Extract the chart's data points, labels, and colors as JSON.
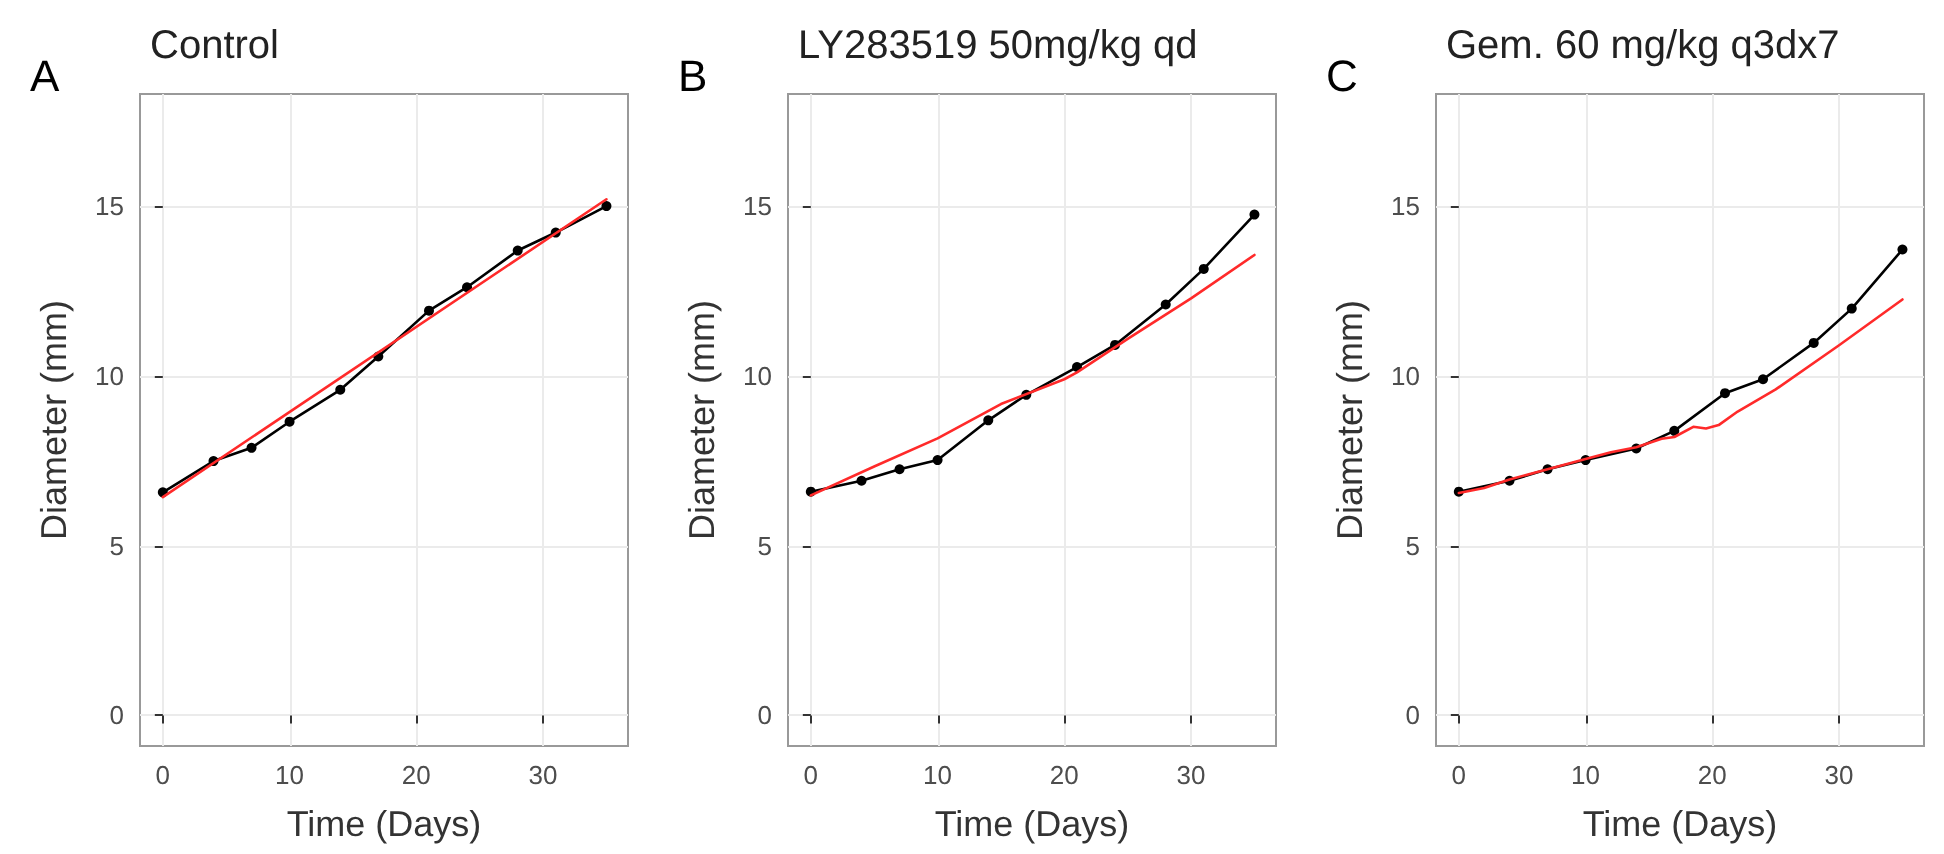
{
  "chart_data": [
    {
      "type": "line",
      "title": "Control",
      "xlabel": "Time (Days)",
      "ylabel": "Diameter (mm)",
      "annotations": [
        "A"
      ],
      "xlim": [
        -1.8,
        36.7
      ],
      "ylim": [
        -0.9,
        18.3
      ],
      "xticks": [
        0,
        10,
        20,
        30
      ],
      "yticks": [
        0,
        5,
        10,
        15
      ],
      "grid": true,
      "series": [
        {
          "color": "#000000",
          "marker": "circle",
          "x": [
            0,
            4,
            7,
            10,
            14,
            17,
            21,
            24,
            28,
            31,
            35
          ],
          "values": [
            6.57,
            7.49,
            7.88,
            8.65,
            9.59,
            10.57,
            11.92,
            12.61,
            13.69,
            14.22,
            15.0
          ]
        },
        {
          "color": "#ff2a2a",
          "marker": "none",
          "x": [
            0,
            35
          ],
          "values": [
            6.43,
            15.2
          ]
        }
      ]
    },
    {
      "type": "line",
      "title": "LY283519 50mg/kg qd",
      "xlabel": "Time (Days)",
      "ylabel": "Diameter (mm)",
      "annotations": [
        "B"
      ],
      "xlim": [
        -1.8,
        36.7
      ],
      "ylim": [
        -0.9,
        18.3
      ],
      "xticks": [
        0,
        10,
        20,
        30
      ],
      "yticks": [
        0,
        5,
        10,
        15
      ],
      "grid": true,
      "series": [
        {
          "color": "#000000",
          "marker": "circle",
          "x": [
            0,
            4,
            7,
            10,
            14,
            17,
            21,
            24,
            28,
            31,
            35
          ],
          "values": [
            6.59,
            6.91,
            7.25,
            7.52,
            8.69,
            9.44,
            10.26,
            10.91,
            12.1,
            13.15,
            14.75
          ]
        },
        {
          "color": "#ff2a2a",
          "marker": "none",
          "x": [
            0,
            5,
            10,
            15,
            20,
            21,
            25,
            30,
            35
          ],
          "values": [
            6.48,
            7.33,
            8.16,
            9.17,
            9.9,
            10.1,
            11.09,
            12.28,
            13.56
          ]
        }
      ]
    },
    {
      "type": "line",
      "title": "Gem. 60 mg/kg q3dx7",
      "xlabel": "Time (Days)",
      "ylabel": "Diameter (mm)",
      "annotations": [
        "C"
      ],
      "xlim": [
        -1.8,
        36.7
      ],
      "ylim": [
        -0.9,
        18.3
      ],
      "xticks": [
        0,
        10,
        20,
        30
      ],
      "yticks": [
        0,
        5,
        10,
        15
      ],
      "grid": true,
      "series": [
        {
          "color": "#000000",
          "marker": "circle",
          "x": [
            0,
            4,
            7,
            10,
            14,
            17,
            21,
            24,
            28,
            31,
            35
          ],
          "values": [
            6.59,
            6.91,
            7.25,
            7.52,
            7.86,
            8.38,
            9.49,
            9.9,
            10.97,
            11.98,
            13.72
          ]
        },
        {
          "color": "#ff2a2a",
          "marker": "none",
          "x": [
            0,
            2,
            4,
            7,
            10,
            12,
            14,
            16,
            17,
            18.5,
            19.5,
            20.5,
            22,
            25,
            30,
            35
          ],
          "values": [
            6.55,
            6.7,
            6.95,
            7.25,
            7.55,
            7.75,
            7.9,
            8.15,
            8.2,
            8.5,
            8.45,
            8.55,
            8.95,
            9.6,
            10.9,
            12.25
          ]
        }
      ]
    }
  ]
}
